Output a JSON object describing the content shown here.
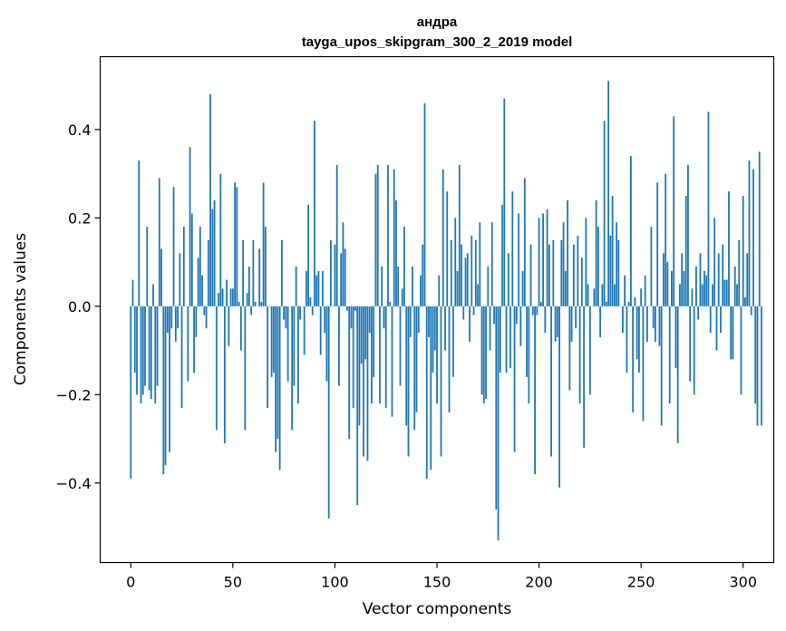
{
  "chart_data": {
    "type": "bar",
    "title": "андра",
    "subtitle": "tayga_upos_skipgram_300_2_2019 model",
    "xlabel": "Vector components",
    "ylabel": "Components values",
    "xlim": [
      -15,
      315
    ],
    "ylim": [
      -0.58,
      0.565
    ],
    "xticks": [
      0,
      50,
      100,
      150,
      200,
      250,
      300
    ],
    "xtick_labels": [
      "0",
      "50",
      "100",
      "150",
      "200",
      "250",
      "300"
    ],
    "yticks": [
      -0.4,
      -0.2,
      0.0,
      0.2,
      0.4
    ],
    "ytick_labels": [
      "−0.4",
      "−0.2",
      "0.0",
      "0.2",
      "0.4"
    ],
    "grid": false,
    "color": "#1f77b4",
    "values": [
      -0.39,
      0.06,
      -0.15,
      -0.2,
      0.33,
      -0.22,
      -0.2,
      -0.18,
      0.18,
      -0.19,
      -0.21,
      0.05,
      -0.22,
      -0.18,
      0.29,
      0.13,
      -0.38,
      -0.36,
      -0.06,
      -0.33,
      -0.05,
      0.27,
      -0.08,
      -0.05,
      0.12,
      -0.23,
      0.18,
      0.0,
      -0.17,
      0.36,
      0.21,
      -0.15,
      -0.07,
      0.11,
      0.18,
      0.07,
      -0.02,
      -0.05,
      0.15,
      0.48,
      0.22,
      0.24,
      -0.28,
      0.03,
      0.3,
      0.04,
      -0.31,
      0.06,
      -0.09,
      0.04,
      0.04,
      0.28,
      0.27,
      0.01,
      -0.1,
      0.15,
      -0.28,
      0.03,
      0.09,
      -0.02,
      0.15,
      0.01,
      0.0,
      0.13,
      0.01,
      0.28,
      0.18,
      -0.23,
      0.0,
      -0.16,
      -0.15,
      -0.33,
      -0.3,
      -0.37,
      0.15,
      -0.03,
      -0.05,
      -0.17,
      0.0,
      -0.28,
      -0.18,
      0.09,
      -0.22,
      -0.03,
      0.0,
      -0.11,
      0.08,
      0.23,
      0.02,
      -0.02,
      0.42,
      0.07,
      0.08,
      -0.11,
      0.08,
      -0.06,
      -0.17,
      -0.48,
      0.15,
      0.0,
      0.14,
      0.32,
      -0.18,
      0.12,
      0.19,
      0.13,
      -0.01,
      -0.3,
      -0.05,
      -0.23,
      -0.01,
      -0.45,
      -0.27,
      -0.13,
      -0.34,
      -0.12,
      -0.35,
      -0.06,
      -0.22,
      -0.16,
      0.3,
      0.32,
      -0.22,
      0.09,
      -0.05,
      -0.23,
      0.32,
      0.01,
      -0.25,
      0.31,
      0.24,
      0.09,
      -0.18,
      0.04,
      0.18,
      -0.27,
      -0.34,
      -0.07,
      0.09,
      -0.28,
      -0.24,
      -0.06,
      0.07,
      0.14,
      0.46,
      -0.39,
      -0.07,
      -0.37,
      -0.15,
      -0.1,
      -0.22,
      0.07,
      -0.34,
      0.31,
      -0.1,
      0.26,
      -0.24,
      0.15,
      -0.16,
      0.2,
      0.08,
      0.32,
      0.14,
      -0.03,
      0.11,
      0.12,
      -0.08,
      0.16,
      -0.02,
      0.15,
      0.05,
      0.19,
      -0.2,
      -0.22,
      -0.21,
      0.09,
      -0.1,
      0.19,
      -0.04,
      -0.46,
      -0.53,
      -0.15,
      0.23,
      0.47,
      -0.15,
      0.12,
      -0.14,
      0.26,
      -0.33,
      -0.04,
      0.21,
      -0.09,
      0.08,
      0.29,
      -0.16,
      -0.22,
      0.14,
      -0.02,
      -0.38,
      -0.02,
      0.2,
      0.01,
      0.21,
      -0.06,
      0.22,
      0.14,
      -0.34,
      0.15,
      -0.08,
      -0.07,
      -0.41,
      0.15,
      0.19,
      0.08,
      0.24,
      -0.19,
      -0.08,
      0.14,
      -0.05,
      0.16,
      -0.22,
      0.11,
      -0.32,
      0.2,
      0.05,
      -0.2,
      0.0,
      0.04,
      0.24,
      0.18,
      -0.07,
      0.05,
      0.42,
      0.01,
      0.51,
      0.16,
      0.25,
      0.05,
      0.19,
      0.15,
      0.0,
      -0.06,
      0.07,
      -0.15,
      0.01,
      0.34,
      -0.24,
      0.02,
      -0.12,
      -0.15,
      0.04,
      -0.26,
      0.07,
      -0.08,
      0.0,
      0.18,
      -0.05,
      -0.08,
      0.28,
      -0.09,
      -0.27,
      0.12,
      0.3,
      0.1,
      -0.22,
      0.08,
      0.43,
      -0.14,
      -0.31,
      0.05,
      0.12,
      0.08,
      0.25,
      0.32,
      -0.17,
      0.04,
      -0.2,
      0.09,
      -0.03,
      0.12,
      0.05,
      0.08,
      0.07,
      0.44,
      -0.06,
      0.05,
      0.2,
      -0.1,
      0.12,
      -0.06,
      0.14,
      0.06,
      0.06,
      0.26,
      -0.12,
      -0.12,
      0.09,
      0.05,
      0.15,
      -0.2,
      0.25,
      0.02,
      0.12,
      0.33,
      -0.02,
      0.31,
      -0.22,
      -0.27,
      0.35,
      -0.27
    ]
  }
}
